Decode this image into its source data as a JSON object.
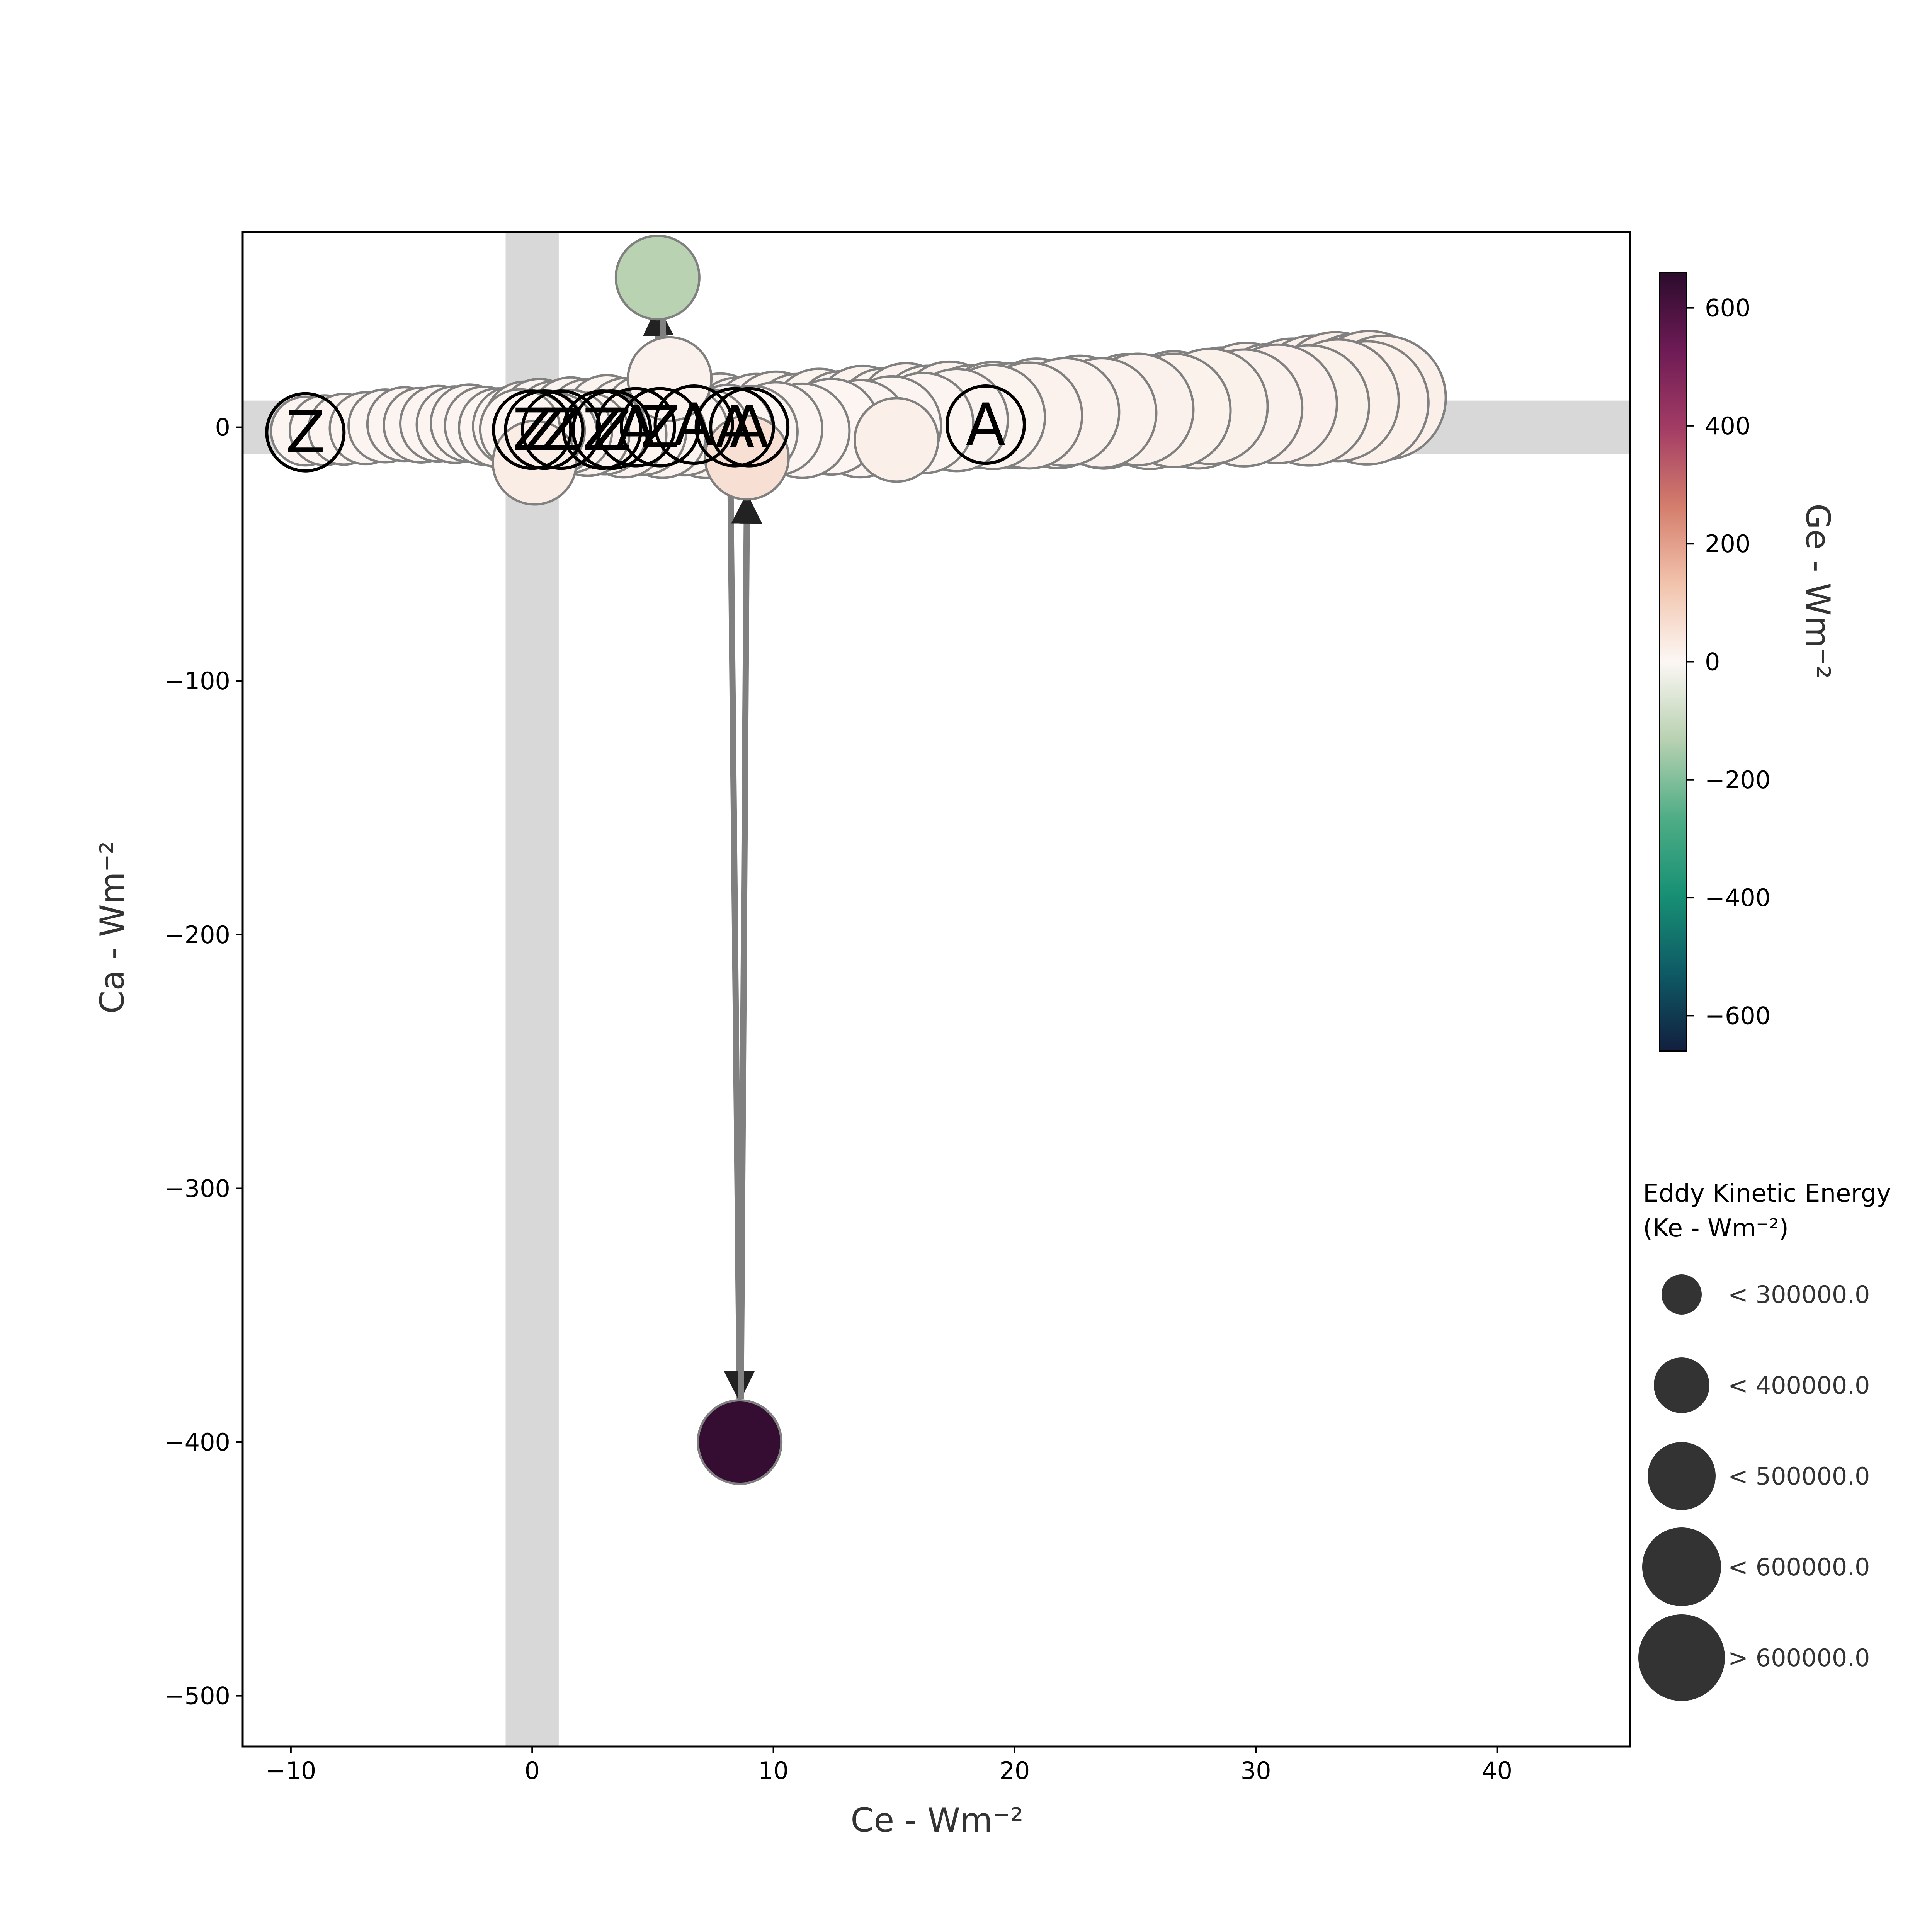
{
  "chart_data": {
    "type": "scatter",
    "title": "",
    "xlabel": "Ce - Wm⁻²",
    "ylabel": "Ca - Wm⁻²",
    "xlim": [
      -12,
      45.5
    ],
    "ylim": [
      -520,
      77
    ],
    "xticks": [
      -10,
      0,
      10,
      20,
      30,
      40
    ],
    "yticks": [
      -500,
      -400,
      -300,
      -200,
      -100,
      0
    ],
    "grid": false,
    "highlight_bands": {
      "x_center": 0,
      "y_center": 0
    },
    "colorbar": {
      "label": "Ge - Wm⁻²",
      "range": [
        -660,
        660
      ],
      "ticks": [
        -600,
        -400,
        -200,
        0,
        200,
        400,
        600
      ],
      "colors": [
        "#121f3f",
        "#0e5a65",
        "#179074",
        "#4fad86",
        "#b8d1b1",
        "#fcf7f4",
        "#f2c3ac",
        "#d47d6c",
        "#a33c65",
        "#6e1b55",
        "#2b0b2c"
      ]
    },
    "size_legend": {
      "title": "Eddy Kinetic Energy",
      "subtitle": "(Ke - Wm⁻²)",
      "entries": [
        "< 300000.0",
        "< 400000.0",
        "< 500000.0",
        "< 600000.0",
        "> 600000.0"
      ]
    },
    "trajectory": [
      [
        -9.4,
        -1.5
      ],
      [
        -8.6,
        -1.2
      ],
      [
        -7.8,
        -0.8
      ],
      [
        -6.9,
        -0.4
      ],
      [
        -6.1,
        0.5
      ],
      [
        -5.3,
        1.2
      ],
      [
        -4.6,
        0.8
      ],
      [
        -3.9,
        1.4
      ],
      [
        -3.2,
        1.0
      ],
      [
        -2.6,
        1.6
      ],
      [
        -2.0,
        0.6
      ],
      [
        -1.4,
        -0.2
      ],
      [
        -0.8,
        0.4
      ],
      [
        -0.3,
        2.2
      ],
      [
        0.3,
        3.1
      ],
      [
        0.9,
        2.0
      ],
      [
        1.6,
        3.4
      ],
      [
        2.3,
        2.5
      ],
      [
        3.1,
        3.9
      ],
      [
        3.9,
        2.6
      ],
      [
        4.7,
        3.6
      ],
      [
        5.4,
        2.1
      ],
      [
        6.2,
        3.2
      ],
      [
        7.0,
        1.8
      ],
      [
        7.8,
        3.4
      ],
      [
        8.5,
        1.6
      ],
      [
        9.3,
        2.9
      ],
      [
        10.1,
        3.6
      ],
      [
        11.0,
        2.5
      ],
      [
        11.9,
        4.3
      ],
      [
        12.8,
        3.1
      ],
      [
        13.7,
        5.0
      ],
      [
        14.6,
        3.8
      ],
      [
        15.5,
        5.6
      ],
      [
        16.4,
        4.4
      ],
      [
        17.3,
        5.8
      ],
      [
        18.2,
        4.1
      ],
      [
        19.1,
        5.2
      ],
      [
        20.0,
        4.6
      ],
      [
        20.9,
        6.1
      ],
      [
        21.8,
        5.0
      ],
      [
        22.7,
        6.8
      ],
      [
        23.7,
        5.3
      ],
      [
        24.7,
        7.0
      ],
      [
        25.6,
        5.6
      ],
      [
        26.6,
        7.6
      ],
      [
        27.6,
        6.3
      ],
      [
        28.6,
        8.6
      ],
      [
        29.6,
        10.2
      ],
      [
        30.6,
        9.6
      ],
      [
        31.5,
        11.4
      ],
      [
        32.4,
        12.4
      ],
      [
        33.3,
        13.5
      ],
      [
        34.1,
        12.6
      ],
      [
        34.7,
        13.6
      ],
      [
        35.3,
        11.6
      ],
      [
        34.6,
        9.6
      ],
      [
        33.4,
        10.6
      ],
      [
        32.2,
        8.6
      ],
      [
        30.9,
        9.2
      ],
      [
        29.5,
        7.6
      ],
      [
        28.1,
        8.2
      ],
      [
        26.6,
        6.6
      ],
      [
        25.1,
        7.0
      ],
      [
        23.6,
        5.6
      ],
      [
        22.1,
        6.0
      ],
      [
        20.6,
        4.6
      ],
      [
        19.1,
        4.0
      ],
      [
        17.6,
        2.8
      ],
      [
        16.2,
        1.6
      ],
      [
        14.9,
        0.6
      ],
      [
        13.6,
        -0.6
      ],
      [
        12.4,
        0.2
      ],
      [
        11.2,
        -1.4
      ],
      [
        10.1,
        -0.6
      ],
      [
        9.1,
        -1.8
      ],
      [
        8.1,
        -1.2
      ],
      [
        7.2,
        -2.4
      ],
      [
        6.3,
        -1.6
      ],
      [
        5.4,
        -2.8
      ],
      [
        4.6,
        -1.8
      ],
      [
        3.8,
        -3.0
      ],
      [
        3.0,
        -2.0
      ],
      [
        2.3,
        -2.8
      ],
      [
        1.6,
        -1.6
      ],
      [
        1.0,
        -2.6
      ],
      [
        0.5,
        -1.4
      ],
      [
        0.0,
        -2.2
      ],
      [
        -0.5,
        -0.8
      ]
    ],
    "markers": [
      {
        "label": "Z",
        "x": -9.4,
        "y": -2
      },
      {
        "label": "Z",
        "x": 0.0,
        "y": -1
      },
      {
        "label": "Z",
        "x": 0.5,
        "y": -1
      },
      {
        "label": "Z",
        "x": 1.2,
        "y": -1
      },
      {
        "label": "Z",
        "x": 2.9,
        "y": -1
      },
      {
        "label": "Z",
        "x": 3.3,
        "y": -1
      },
      {
        "label": "Z",
        "x": 5.3,
        "y": 0
      },
      {
        "label": "A",
        "x": 4.3,
        "y": 0
      },
      {
        "label": "A",
        "x": 6.7,
        "y": 1
      },
      {
        "label": "A",
        "x": 8.4,
        "y": 0
      },
      {
        "label": "A",
        "x": 9.0,
        "y": 0
      },
      {
        "label": "A",
        "x": 18.8,
        "y": 1
      }
    ],
    "outliers": [
      {
        "x": 5.2,
        "y": 59,
        "ge": -130
      },
      {
        "x": 8.6,
        "y": -400,
        "ge": 640
      },
      {
        "x": 0.1,
        "y": -14,
        "ge": 25
      },
      {
        "x": 8.9,
        "y": -12,
        "ge": 60
      },
      {
        "x": 15.1,
        "y": -5,
        "ge": 20
      },
      {
        "x": 5.7,
        "y": 19,
        "ge": 15
      }
    ]
  }
}
